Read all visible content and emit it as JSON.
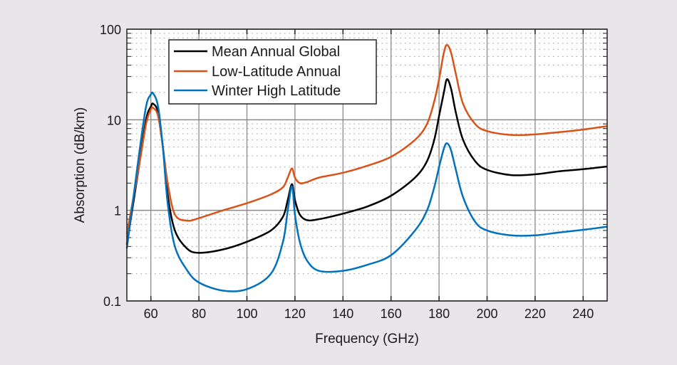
{
  "chart_data": {
    "type": "line",
    "title": "",
    "xlabel": "Frequency (GHz)",
    "ylabel": "Absorption (dB/km)",
    "xlim": [
      50,
      250
    ],
    "ylim": [
      0.1,
      100
    ],
    "yscale": "log",
    "grid": true,
    "legend_position": "top-left",
    "xticks": [
      60,
      80,
      100,
      120,
      140,
      160,
      180,
      200,
      220,
      240
    ],
    "xtick_labels": [
      "60",
      "80",
      "100",
      "120",
      "140",
      "160",
      "180",
      "200",
      "220",
      "240"
    ],
    "yticks": [
      0.1,
      1,
      10,
      100
    ],
    "ytick_labels": [
      "0.1",
      "1",
      "10",
      "100"
    ],
    "x": [
      50,
      55,
      58,
      60,
      61,
      63,
      65,
      67,
      70,
      75,
      80,
      90,
      100,
      110,
      115,
      117,
      118.75,
      120,
      122,
      125,
      130,
      140,
      150,
      160,
      170,
      175,
      178,
      180,
      182,
      183.3,
      185,
      187,
      190,
      195,
      200,
      210,
      220,
      230,
      240,
      250
    ],
    "series": [
      {
        "name": "Mean Annual Global",
        "color": "#000000",
        "values": [
          0.42,
          3,
          10,
          14,
          15,
          12,
          5,
          1.5,
          0.6,
          0.38,
          0.34,
          0.37,
          0.45,
          0.6,
          0.85,
          1.3,
          1.95,
          1.3,
          0.9,
          0.78,
          0.8,
          0.92,
          1.1,
          1.45,
          2.3,
          3.5,
          6,
          11,
          20,
          28,
          22,
          12,
          6,
          3.5,
          2.8,
          2.45,
          2.5,
          2.7,
          2.85,
          3.05
        ]
      },
      {
        "name": "Low-Latitude Annual",
        "color": "#d95319",
        "values": [
          0.55,
          3,
          9,
          13,
          13.5,
          11,
          5,
          2,
          0.9,
          0.77,
          0.82,
          1.0,
          1.2,
          1.5,
          1.8,
          2.3,
          2.9,
          2.3,
          2.0,
          2.05,
          2.3,
          2.6,
          3.1,
          3.9,
          6,
          9,
          16,
          28,
          55,
          67,
          55,
          32,
          15,
          9,
          7.5,
          6.8,
          6.9,
          7.3,
          7.8,
          8.5
        ]
      },
      {
        "name": "Winter High Latitude",
        "color": "#0072bd",
        "values": [
          0.38,
          4,
          14,
          19,
          19.5,
          14,
          5,
          1.2,
          0.4,
          0.22,
          0.16,
          0.13,
          0.135,
          0.2,
          0.45,
          1.0,
          1.85,
          0.9,
          0.45,
          0.28,
          0.215,
          0.215,
          0.25,
          0.32,
          0.6,
          1.0,
          1.8,
          3,
          4.8,
          5.5,
          4.6,
          2.8,
          1.4,
          0.75,
          0.6,
          0.53,
          0.53,
          0.57,
          0.61,
          0.66
        ]
      }
    ]
  }
}
